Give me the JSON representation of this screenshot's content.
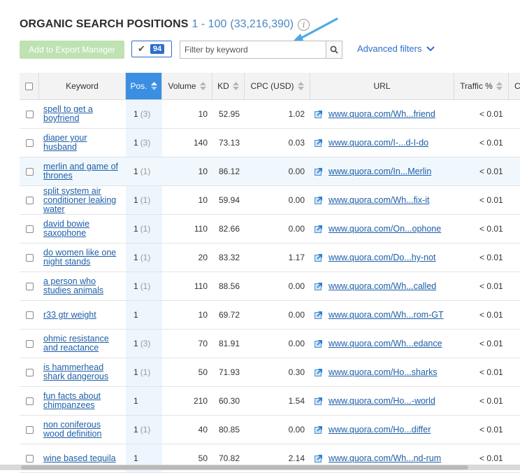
{
  "header": {
    "title": "ORGANIC SEARCH POSITIONS",
    "range": "1 - 100",
    "total": "(33,216,390)",
    "info_glyph": "i"
  },
  "toolbar": {
    "export_label": "Add to Export Manager",
    "selected_count": "94",
    "filter_placeholder": "Filter by keyword",
    "filter_value": "",
    "advanced_filters_label": "Advanced filters"
  },
  "colors": {
    "accent": "#3a8fe3",
    "link": "#1e5fa8",
    "export_disabled": "#bfe2b3",
    "annotation_arrow": "#4da9e6"
  },
  "table": {
    "columns": [
      {
        "key": "keyword",
        "label": "Keyword"
      },
      {
        "key": "pos",
        "label": "Pos."
      },
      {
        "key": "volume",
        "label": "Volume"
      },
      {
        "key": "kd",
        "label": "KD"
      },
      {
        "key": "cpc",
        "label": "CPC (USD)"
      },
      {
        "key": "url",
        "label": "URL"
      },
      {
        "key": "traffic",
        "label": "Traffic %"
      },
      {
        "key": "more",
        "label": "C"
      }
    ],
    "rows": [
      {
        "keyword": "spell to get a boyfriend",
        "pos": "1",
        "prev": "(3)",
        "volume": "10",
        "kd": "52.95",
        "cpc": "1.02",
        "url": "www.quora.com/Wh...friend",
        "traffic": "< 0.01"
      },
      {
        "keyword": "diaper your husband",
        "pos": "1",
        "prev": "(3)",
        "volume": "140",
        "kd": "73.13",
        "cpc": "0.03",
        "url": "www.quora.com/I-...d-I-do",
        "traffic": "< 0.01"
      },
      {
        "keyword": "merlin and game of thrones",
        "pos": "1",
        "prev": "(1)",
        "volume": "10",
        "kd": "86.12",
        "cpc": "0.00",
        "url": "www.quora.com/In...Merlin",
        "traffic": "< 0.01"
      },
      {
        "keyword": "split system air conditioner leaking water",
        "pos": "1",
        "prev": "(1)",
        "volume": "10",
        "kd": "59.94",
        "cpc": "0.00",
        "url": "www.quora.com/Wh...fix-it",
        "traffic": "< 0.01"
      },
      {
        "keyword": "david bowie saxophone",
        "pos": "1",
        "prev": "(1)",
        "volume": "110",
        "kd": "82.66",
        "cpc": "0.00",
        "url": "www.quora.com/On...ophone",
        "traffic": "< 0.01"
      },
      {
        "keyword": "do women like one night stands",
        "pos": "1",
        "prev": "(1)",
        "volume": "20",
        "kd": "83.32",
        "cpc": "1.17",
        "url": "www.quora.com/Do...hy-not",
        "traffic": "< 0.01"
      },
      {
        "keyword": "a person who studies animals",
        "pos": "1",
        "prev": "(1)",
        "volume": "110",
        "kd": "88.56",
        "cpc": "0.00",
        "url": "www.quora.com/Wh...called",
        "traffic": "< 0.01"
      },
      {
        "keyword": "r33 gtr weight",
        "pos": "1",
        "prev": "",
        "volume": "10",
        "kd": "69.72",
        "cpc": "0.00",
        "url": "www.quora.com/Wh...rom-GT",
        "traffic": "< 0.01"
      },
      {
        "keyword": "ohmic resistance and reactance",
        "pos": "1",
        "prev": "(3)",
        "volume": "70",
        "kd": "81.91",
        "cpc": "0.00",
        "url": "www.quora.com/Wh...edance",
        "traffic": "< 0.01"
      },
      {
        "keyword": "is hammerhead shark dangerous",
        "pos": "1",
        "prev": "(1)",
        "volume": "50",
        "kd": "71.93",
        "cpc": "0.30",
        "url": "www.quora.com/Ho...sharks",
        "traffic": "< 0.01"
      },
      {
        "keyword": "fun facts about chimpanzees",
        "pos": "1",
        "prev": "",
        "volume": "210",
        "kd": "60.30",
        "cpc": "1.54",
        "url": "www.quora.com/Ho...-world",
        "traffic": "< 0.01"
      },
      {
        "keyword": "non coniferous wood definition",
        "pos": "1",
        "prev": "(1)",
        "volume": "40",
        "kd": "80.85",
        "cpc": "0.00",
        "url": "www.quora.com/Ho...differ",
        "traffic": "< 0.01"
      },
      {
        "keyword": "wine based tequila",
        "pos": "1",
        "prev": "",
        "volume": "50",
        "kd": "70.82",
        "cpc": "2.14",
        "url": "www.quora.com/Wh...nd-rum",
        "traffic": "< 0.01"
      }
    ]
  }
}
